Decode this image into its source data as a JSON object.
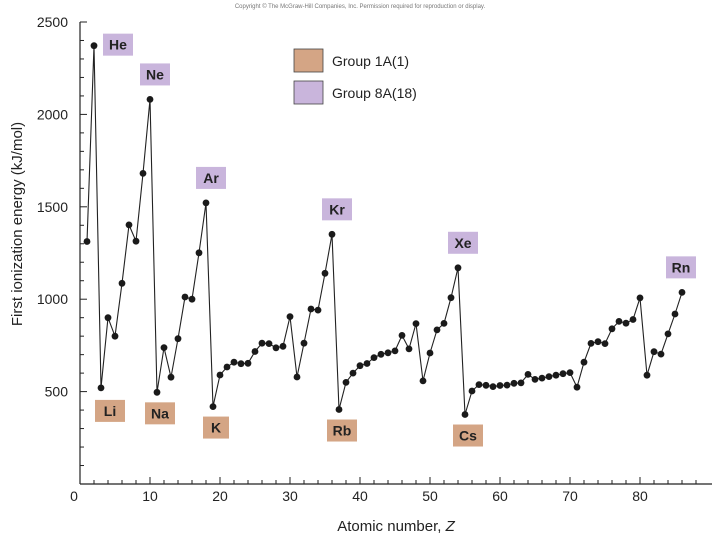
{
  "copyright": "Copyright © The McGraw-Hill Companies, Inc. Permission required for reproduction or display.",
  "colors": {
    "group1a": "#d4a585",
    "group8a": "#c9b5dc",
    "line": "#222222",
    "point": "#1a1a1a"
  },
  "chart_data": {
    "type": "line",
    "title": "",
    "xlabel": "Atomic number, ",
    "xlabel_var": "Z",
    "ylabel": "First ionization energy (kJ/mol)",
    "xlim": [
      0,
      88
    ],
    "ylim": [
      0,
      2500
    ],
    "xticks": [
      0,
      10,
      20,
      30,
      40,
      50,
      60,
      70,
      80
    ],
    "xtick_labels": [
      "0",
      "10",
      "20",
      "30",
      "40",
      "50",
      "60",
      "70",
      "80"
    ],
    "yticks": [
      500,
      1000,
      1500,
      2000,
      2500
    ],
    "ytick_labels": [
      "500",
      "1000",
      "1500",
      "2000",
      "2500"
    ],
    "legend": [
      {
        "label": "Group 1A(1)",
        "group": "group1a"
      },
      {
        "label": "Group 8A(18)",
        "group": "group8a"
      }
    ],
    "series": [
      {
        "name": "First ionization energy",
        "x": [
          1,
          2,
          3,
          4,
          5,
          6,
          7,
          8,
          9,
          10,
          11,
          12,
          13,
          14,
          15,
          16,
          17,
          18,
          19,
          20,
          21,
          22,
          23,
          24,
          25,
          26,
          27,
          28,
          29,
          30,
          31,
          32,
          33,
          34,
          35,
          36,
          37,
          38,
          39,
          40,
          41,
          42,
          43,
          44,
          45,
          46,
          47,
          48,
          49,
          50,
          51,
          52,
          53,
          54,
          55,
          56,
          57,
          58,
          59,
          60,
          61,
          62,
          63,
          64,
          65,
          66,
          67,
          68,
          69,
          70,
          71,
          72,
          73,
          74,
          75,
          76,
          77,
          78,
          79,
          80,
          81,
          82,
          83,
          84,
          85,
          86
        ],
        "values": [
          1312,
          2372,
          520,
          900,
          800,
          1086,
          1402,
          1314,
          1681,
          2081,
          496,
          738,
          578,
          786,
          1012,
          1000,
          1251,
          1521,
          419,
          590,
          633,
          659,
          651,
          653,
          717,
          762,
          760,
          737,
          745,
          906,
          579,
          762,
          947,
          941,
          1140,
          1351,
          403,
          550,
          600,
          640,
          652,
          684,
          702,
          710,
          720,
          804,
          731,
          868,
          558,
          709,
          834,
          869,
          1008,
          1170,
          376,
          503,
          538,
          534,
          527,
          533,
          535,
          545,
          547,
          593,
          566,
          573,
          581,
          589,
          597,
          603,
          524,
          659,
          761,
          770,
          760,
          840,
          880,
          870,
          890,
          1007,
          589,
          716,
          703,
          812,
          920,
          1037
        ]
      }
    ],
    "labels": [
      {
        "symbol": "He",
        "z": 2,
        "group": "group8a"
      },
      {
        "symbol": "Ne",
        "z": 10,
        "group": "group8a"
      },
      {
        "symbol": "Ar",
        "z": 18,
        "group": "group8a"
      },
      {
        "symbol": "Kr",
        "z": 36,
        "group": "group8a"
      },
      {
        "symbol": "Xe",
        "z": 54,
        "group": "group8a"
      },
      {
        "symbol": "Rn",
        "z": 86,
        "group": "group8a"
      },
      {
        "symbol": "Li",
        "z": 3,
        "group": "group1a"
      },
      {
        "symbol": "Na",
        "z": 11,
        "group": "group1a"
      },
      {
        "symbol": "K",
        "z": 19,
        "group": "group1a"
      },
      {
        "symbol": "Rb",
        "z": 37,
        "group": "group1a"
      },
      {
        "symbol": "Cs",
        "z": 55,
        "group": "group1a"
      }
    ]
  }
}
